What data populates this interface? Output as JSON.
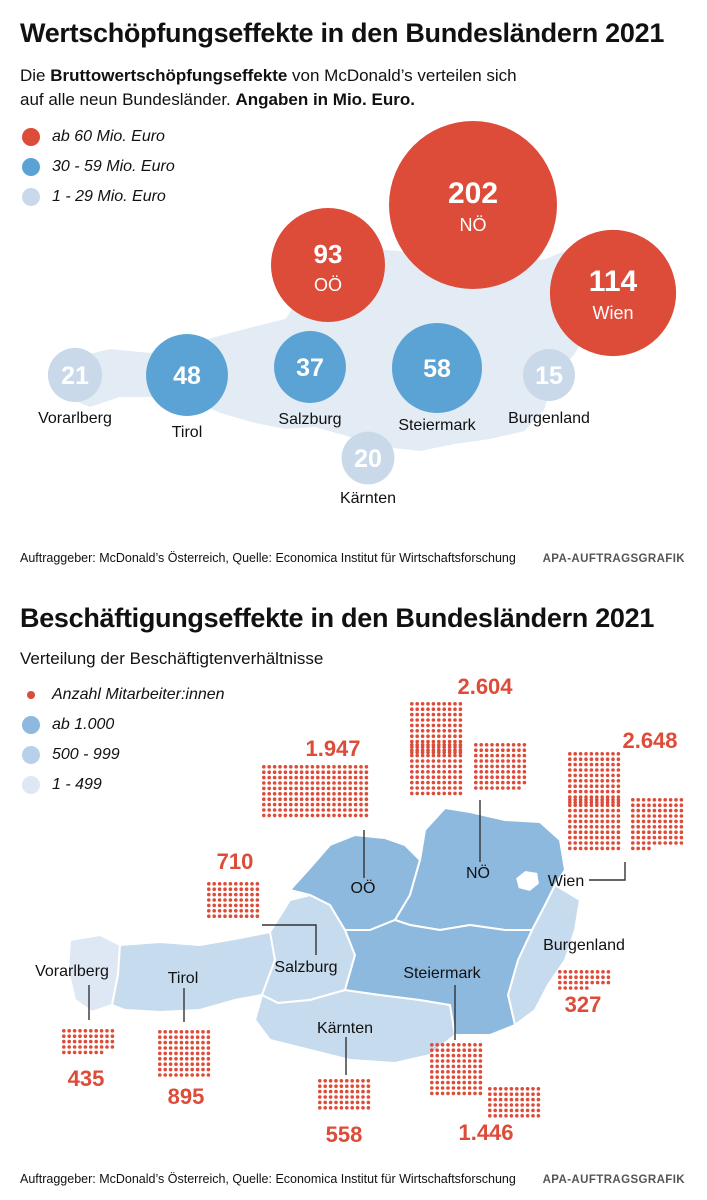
{
  "section1": {
    "title": "Wertschöpfungseffekte in den Bundesländern 2021",
    "subtitle_prefix": "Die ",
    "subtitle_bold1": "Bruttowertschöpfungseffekte",
    "subtitle_mid": " von McDonald’s verteilen sich",
    "subtitle_line2": "auf alle neun Bundesländer. ",
    "subtitle_bold2": "Angaben in Mio. Euro.",
    "legend": [
      {
        "label": "ab 60 Mio. Euro",
        "color": "#dd4b39"
      },
      {
        "label": "30 - 59 Mio. Euro",
        "color": "#5aa3d4"
      },
      {
        "label": "1 - 29 Mio. Euro",
        "color": "#c9d9ea"
      }
    ],
    "source": "Auftraggeber: McDonald’s Österreich, Quelle: Economica Institut für Wirtschaftsforschung",
    "credit": "APA-AUFTRAGSGRAFIK"
  },
  "section2": {
    "title": "Beschäftigungseffekte in den Bundesländern 2021",
    "subtitle": "Verteilung der Beschäftigtenverhältnisse",
    "legend": [
      {
        "label": "Anzahl Mitarbeiter:innen",
        "color": "#dd4b39",
        "icon": "dot"
      },
      {
        "label": "ab 1.000",
        "color": "#8db9df"
      },
      {
        "label": "500 - 999",
        "color": "#b7d1ea"
      },
      {
        "label": "1 - 499",
        "color": "#dde8f4"
      }
    ],
    "source": "Auftraggeber: McDonald’s Österreich, Quelle: Economica Institut für Wirtschaftsforschung",
    "credit": "APA-AUFTRAGSGRAFIK"
  },
  "chart_data": [
    {
      "type": "bubble-map",
      "unit": "Mio. Euro",
      "categories": [
        "NÖ",
        "Wien",
        "OÖ",
        "Steiermark",
        "Tirol",
        "Salzburg",
        "Vorarlberg",
        "Kärnten",
        "Burgenland"
      ],
      "values": [
        202,
        114,
        93,
        58,
        48,
        37,
        21,
        20,
        15
      ],
      "value_labels": [
        "202",
        "114",
        "93",
        "58",
        "48",
        "37",
        "21",
        "20",
        "15"
      ],
      "colors": {
        "high": "#dd4b39",
        "mid": "#5aa3d4",
        "low": "#c9d9ea"
      }
    },
    {
      "type": "dot-map",
      "categories": [
        "Wien",
        "NÖ",
        "OÖ",
        "Steiermark",
        "Tirol",
        "Salzburg",
        "Kärnten",
        "Vorarlberg",
        "Burgenland"
      ],
      "values": [
        2648,
        2604,
        1947,
        1446,
        895,
        710,
        558,
        435,
        327
      ],
      "value_labels": [
        "2.648",
        "2.604",
        "1.947",
        "1.446",
        "895",
        "710",
        "558",
        "435",
        "327"
      ],
      "colors": {
        "dots": "#dd4b39",
        "high": "#8db9df",
        "mid": "#b7d1ea",
        "low": "#dde8f4"
      }
    }
  ]
}
